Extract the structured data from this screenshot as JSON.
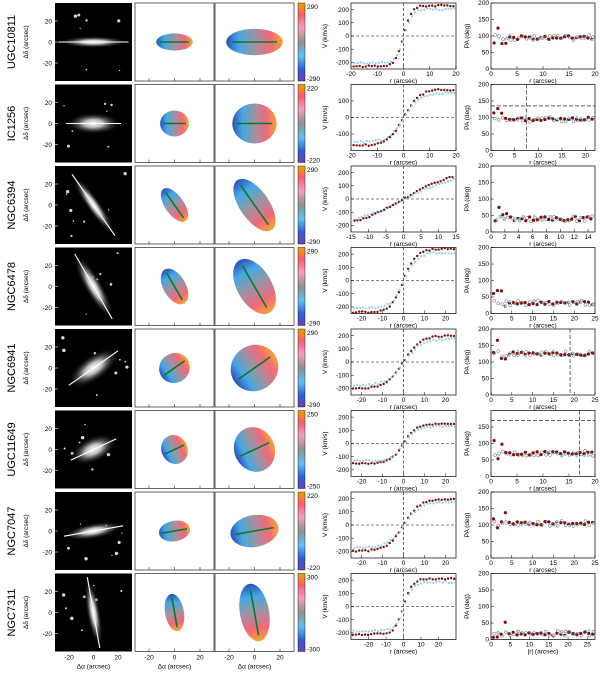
{
  "common": {
    "label_dy": "Δδ (arcsec)",
    "label_da": "Δα (arcsec)",
    "label_v": "V (km/s)",
    "label_r": "r (arcsec)",
    "label_pa": "PA (deg)",
    "label_absr": "|r| (arcsec)",
    "xticks_image": [
      "-20",
      "0",
      "20"
    ],
    "xticks_map": [
      "-20",
      "0",
      "20"
    ]
  },
  "colors": {
    "approaching_series": "#7a1010",
    "receding_series": "#8fd0ec",
    "velocity_blue": "#3b7fd0",
    "velocity_red": "#e5606a",
    "fit_line": "#0a7a2a"
  },
  "galaxies": [
    {
      "name": "UGC10811",
      "cbar": [
        "290",
        "-290"
      ],
      "chart_data": {
        "type": "scatter",
        "velocity": {
          "xlim": [
            -20,
            20
          ],
          "ylim": [
            -250,
            250
          ],
          "xticks": [
            "-20",
            "-10",
            "0",
            "10",
            "20"
          ],
          "yticks": [
            "-200",
            "-100",
            "0",
            "100",
            "200"
          ],
          "vmax": 230,
          "rt": 3
        },
        "pa": {
          "xlim": [
            0,
            20
          ],
          "ylim": [
            0,
            200
          ],
          "xticks": [
            "0",
            "5",
            "10",
            "15",
            "20"
          ],
          "yticks": [
            "0",
            "50",
            "100",
            "150",
            "200"
          ],
          "pa": 95,
          "ref": null,
          "rref": null
        }
      }
    },
    {
      "name": "IC1256",
      "cbar": [
        "220",
        "-220"
      ],
      "chart_data": {
        "type": "scatter",
        "velocity": {
          "xlim": [
            -20,
            20
          ],
          "ylim": [
            -200,
            200
          ],
          "xticks": [
            "-20",
            "-10",
            "0",
            "10",
            "20"
          ],
          "yticks": [
            "-100",
            "0",
            "100"
          ],
          "vmax": 170,
          "rt": 6
        },
        "pa": {
          "xlim": [
            0,
            22
          ],
          "ylim": [
            0,
            200
          ],
          "xticks": [
            "0",
            "5",
            "10",
            "15",
            "20"
          ],
          "yticks": [
            "0",
            "50",
            "100",
            "150",
            "200"
          ],
          "pa": 95,
          "ref": 135,
          "rref": 7.5
        }
      }
    },
    {
      "name": "NGC6394",
      "cbar": [
        "290",
        "-290"
      ],
      "chart_data": {
        "type": "scatter",
        "velocity": {
          "xlim": [
            -15,
            15
          ],
          "ylim": [
            -250,
            250
          ],
          "xticks": [
            "-15",
            "-10",
            "-5",
            "0",
            "5",
            "10",
            "15"
          ],
          "yticks": [
            "-200",
            "-100",
            "0",
            "100",
            "200"
          ],
          "vmax": 230,
          "rt": 15
        },
        "pa": {
          "xlim": [
            0,
            15
          ],
          "ylim": [
            0,
            200
          ],
          "xticks": [
            "0",
            "2",
            "4",
            "6",
            "8",
            "10",
            "12",
            "14"
          ],
          "yticks": [
            "0",
            "50",
            "100",
            "150",
            "200"
          ],
          "pa": 40,
          "ref": null,
          "rref": null
        }
      }
    },
    {
      "name": "NGC6478",
      "cbar": [
        "290",
        "-290"
      ],
      "chart_data": {
        "type": "scatter",
        "velocity": {
          "xlim": [
            -25,
            25
          ],
          "ylim": [
            -250,
            250
          ],
          "xticks": [
            "-20",
            "-10",
            "0",
            "10",
            "20"
          ],
          "yticks": [
            "-200",
            "-100",
            "0",
            "100",
            "200"
          ],
          "vmax": 240,
          "rt": 6
        },
        "pa": {
          "xlim": [
            0,
            25
          ],
          "ylim": [
            0,
            200
          ],
          "xticks": [
            "0",
            "5",
            "10",
            "15",
            "20",
            "25"
          ],
          "yticks": [
            "0",
            "50",
            "100",
            "150",
            "200"
          ],
          "pa": 32,
          "ref": null,
          "rref": null
        }
      }
    },
    {
      "name": "NGC6941",
      "cbar": [
        "290",
        "-290"
      ],
      "chart_data": {
        "type": "scatter",
        "velocity": {
          "xlim": [
            -25,
            25
          ],
          "ylim": [
            -250,
            250
          ],
          "xticks": [
            "-20",
            "-10",
            "0",
            "10",
            "20"
          ],
          "yticks": [
            "-200",
            "-100",
            "0",
            "100",
            "200"
          ],
          "vmax": 200,
          "rt": 8
        },
        "pa": {
          "xlim": [
            0,
            25
          ],
          "ylim": [
            0,
            200
          ],
          "xticks": [
            "0",
            "5",
            "10",
            "15",
            "20",
            "25"
          ],
          "yticks": [
            "0",
            "50",
            "100",
            "150",
            "200"
          ],
          "pa": 125,
          "ref": null,
          "rref": 19
        }
      }
    },
    {
      "name": "UGC11649",
      "cbar": [
        "250",
        "-250"
      ],
      "chart_data": {
        "type": "scatter",
        "velocity": {
          "xlim": [
            -25,
            25
          ],
          "ylim": [
            -250,
            250
          ],
          "xticks": [
            "-20",
            "-10",
            "0",
            "10",
            "20"
          ],
          "yticks": [
            "-200",
            "-100",
            "0",
            "100",
            "200"
          ],
          "vmax": 150,
          "rt": 6
        },
        "pa": {
          "xlim": [
            0,
            20
          ],
          "ylim": [
            0,
            200
          ],
          "xticks": [
            "0",
            "5",
            "10",
            "15",
            "20"
          ],
          "yticks": [
            "0",
            "50",
            "100",
            "150"
          ],
          "pa": 70,
          "ref": 170,
          "rref": 17
        }
      }
    },
    {
      "name": "NGC7047",
      "cbar": [
        "220",
        "-220"
      ],
      "chart_data": {
        "type": "scatter",
        "velocity": {
          "xlim": [
            -25,
            25
          ],
          "ylim": [
            -250,
            250
          ],
          "xticks": [
            "-20",
            "-10",
            "0",
            "10",
            "20"
          ],
          "yticks": [
            "-200",
            "-100",
            "0",
            "100",
            "200"
          ],
          "vmax": 200,
          "rt": 8
        },
        "pa": {
          "xlim": [
            0,
            25
          ],
          "ylim": [
            0,
            200
          ],
          "xticks": [
            "0",
            "5",
            "10",
            "15",
            "20",
            "25"
          ],
          "yticks": [
            "0",
            "50",
            "100",
            "150",
            "200"
          ],
          "pa": 105,
          "ref": null,
          "rref": null
        }
      }
    },
    {
      "name": "NGC7311",
      "cbar": [
        "300",
        "-300"
      ],
      "chart_data": {
        "type": "scatter",
        "velocity": {
          "xlim": [
            -30,
            30
          ],
          "ylim": [
            -250,
            250
          ],
          "xticks": [
            "-20",
            "-10",
            "0",
            "10",
            "20"
          ],
          "yticks": [
            "-200",
            "-100",
            "0",
            "100",
            "200"
          ],
          "vmax": 210,
          "rt": 5
        },
        "pa": {
          "xlim": [
            0,
            27
          ],
          "ylim": [
            0,
            200
          ],
          "xticks": [
            "0",
            "5",
            "10",
            "15",
            "20",
            "25"
          ],
          "yticks": [
            "0",
            "50",
            "100",
            "150",
            "200"
          ],
          "pa": 18,
          "ref": null,
          "rref": null
        }
      }
    }
  ]
}
